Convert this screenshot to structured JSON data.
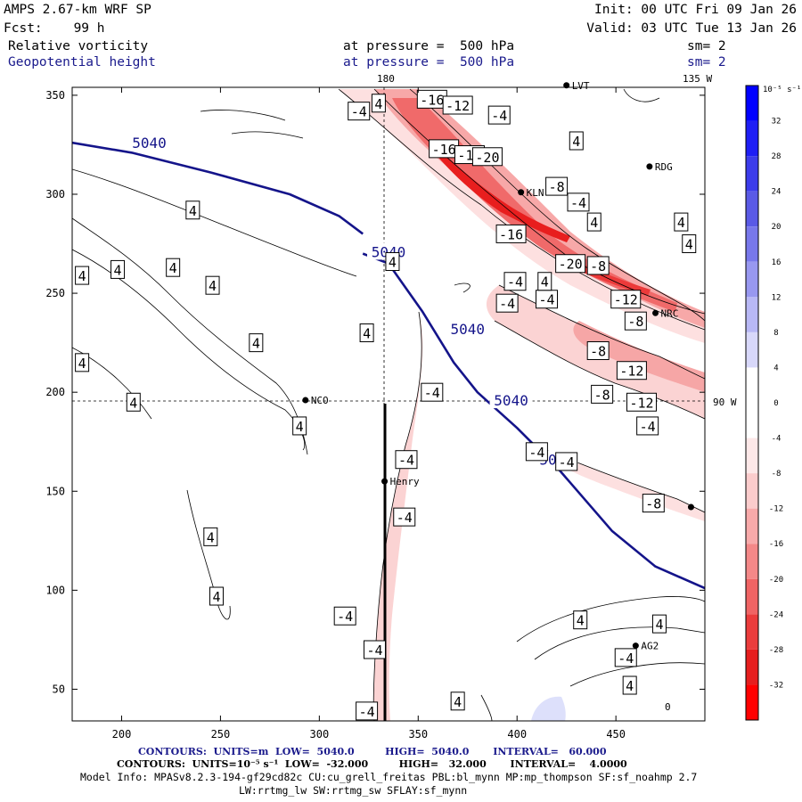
{
  "header": {
    "model": "AMPS 2.67-km WRF SP",
    "init": "Init: 00 UTC Fri 09 Jan 26",
    "fcst": "Fcst:    99 h",
    "valid": "Valid: 03 UTC Tue 13 Jan 26",
    "field1": "Relative vorticity",
    "field1_level": "at pressure =  500 hPa",
    "field1_sm": "sm= 2",
    "field2": "Geopotential height",
    "field2_level": "at pressure =  500 hPa",
    "field2_sm": "sm= 2"
  },
  "map_labels": {
    "lon_180": "180",
    "lon_135w": "135 W",
    "lon_90w": "90 W",
    "zero": "0"
  },
  "stations": [
    {
      "name": "LVT",
      "x": 425,
      "y": 355
    },
    {
      "name": "RDG",
      "x": 467,
      "y": 314
    },
    {
      "name": "KLN",
      "x": 402,
      "y": 301
    },
    {
      "name": "NRC",
      "x": 470,
      "y": 240
    },
    {
      "name": "NCO",
      "x": 293,
      "y": 196
    },
    {
      "name": "Henry",
      "x": 333,
      "y": 155
    },
    {
      "name": "AG2",
      "x": 460,
      "y": 72
    },
    {
      "name": "",
      "x": 488,
      "y": 142
    }
  ],
  "colorbar": {
    "unit": "10⁻⁵ s⁻¹",
    "ticks": [
      "32",
      "28",
      "24",
      "20",
      "16",
      "12",
      "8",
      "4",
      "0",
      "-4",
      "-8",
      "-12",
      "-16",
      "-20",
      "-24",
      "-28",
      "-32"
    ],
    "colors": [
      "#0000ff",
      "#1e1ef5",
      "#3c3ceb",
      "#5a5ae6",
      "#7878eb",
      "#9898f0",
      "#b8b8f5",
      "#d8d8fa",
      "#ffffff",
      "#ffffff",
      "#fde8e8",
      "#fbcccc",
      "#f8aaaa",
      "#f48888",
      "#f06464",
      "#eb3c3c",
      "#e61e1e",
      "#ff0000"
    ]
  },
  "footer": {
    "line1": "CONTOURS:  UNITS=m  LOW=  5040.0         HIGH=  5040.0       INTERVAL=   60.000",
    "line2": "CONTOURS:  UNITS=10⁻⁵ s⁻¹  LOW=  -32.000         HIGH=   32.000       INTERVAL=    4.0000",
    "line3": "Model Info: MPASv8.2.3-194-gf29cd82c CU:cu_grell_freitas PBL:bl_mynn MP:mp_thompson SF:sf_noahmp 2.7",
    "line4": "LW:rrtmg_lw SW:rrtmg_sw SFLAY:sf_mynn"
  },
  "chart_data": {
    "type": "heatmap",
    "title": "Relative vorticity and Geopotential height at 500 hPa",
    "x_ticks": [
      200,
      250,
      300,
      350,
      400,
      450
    ],
    "y_ticks": [
      50,
      100,
      150,
      200,
      250,
      300,
      350
    ],
    "xlim": [
      175,
      495
    ],
    "ylim": [
      34,
      354
    ],
    "height_contours": [
      {
        "value": 5040,
        "label": "5040",
        "points": [
          [
            175,
            326
          ],
          [
            205,
            321
          ],
          [
            245,
            311
          ],
          [
            285,
            300
          ],
          [
            310,
            289
          ],
          [
            322,
            280
          ]
        ]
      },
      {
        "value": 5040,
        "label": "5040",
        "points": [
          [
            322,
            270
          ],
          [
            335,
            265
          ],
          [
            352,
            241
          ],
          [
            368,
            215
          ],
          [
            380,
            200
          ],
          [
            400,
            182
          ],
          [
            422,
            160
          ],
          [
            448,
            130
          ],
          [
            470,
            112
          ],
          [
            495,
            101
          ]
        ]
      }
    ],
    "height_labels": [
      {
        "text": "5040",
        "x": 214,
        "y": 326
      },
      {
        "text": "5040",
        "x": 335,
        "y": 271
      },
      {
        "text": "5040",
        "x": 375,
        "y": 232
      },
      {
        "text": "5040",
        "x": 397,
        "y": 196
      },
      {
        "text": "5040",
        "x": 420,
        "y": 166
      }
    ],
    "vort_labels": [
      {
        "text": "-16",
        "x": 357,
        "y": 348
      },
      {
        "text": "-12",
        "x": 370,
        "y": 345
      },
      {
        "text": "-4",
        "x": 320,
        "y": 342
      },
      {
        "text": "-4",
        "x": 391,
        "y": 340
      },
      {
        "text": "-16",
        "x": 363,
        "y": 323
      },
      {
        "text": "-16",
        "x": 376,
        "y": 320
      },
      {
        "text": "-20",
        "x": 385,
        "y": 319
      },
      {
        "text": "-8",
        "x": 420,
        "y": 304
      },
      {
        "text": "-4",
        "x": 431,
        "y": 296
      },
      {
        "text": "-16",
        "x": 397,
        "y": 280
      },
      {
        "text": "-20",
        "x": 427,
        "y": 265
      },
      {
        "text": "-8",
        "x": 441,
        "y": 264
      },
      {
        "text": "-4",
        "x": 399,
        "y": 256
      },
      {
        "text": "-4",
        "x": 395,
        "y": 245
      },
      {
        "text": "-4",
        "x": 415,
        "y": 247
      },
      {
        "text": "-12",
        "x": 455,
        "y": 247
      },
      {
        "text": "-8",
        "x": 460,
        "y": 236
      },
      {
        "text": "-8",
        "x": 441,
        "y": 221
      },
      {
        "text": "-12",
        "x": 458,
        "y": 211
      },
      {
        "text": "-8",
        "x": 443,
        "y": 199
      },
      {
        "text": "-12",
        "x": 463,
        "y": 195
      },
      {
        "text": "-4",
        "x": 466,
        "y": 183
      },
      {
        "text": "-4",
        "x": 357,
        "y": 200
      },
      {
        "text": "-4",
        "x": 410,
        "y": 170
      },
      {
        "text": "-4",
        "x": 425,
        "y": 165
      },
      {
        "text": "-8",
        "x": 469,
        "y": 144
      },
      {
        "text": "-4",
        "x": 344,
        "y": 166
      },
      {
        "text": "-4",
        "x": 343,
        "y": 137
      },
      {
        "text": "-4",
        "x": 313,
        "y": 87
      },
      {
        "text": "-4",
        "x": 328,
        "y": 70
      },
      {
        "text": "-4",
        "x": 324,
        "y": 39
      },
      {
        "text": "-4",
        "x": 455,
        "y": 66
      },
      {
        "text": "4",
        "x": 330,
        "y": 346
      },
      {
        "text": "4",
        "x": 430,
        "y": 327
      },
      {
        "text": "4",
        "x": 439,
        "y": 286
      },
      {
        "text": "4",
        "x": 483,
        "y": 286
      },
      {
        "text": "4",
        "x": 487,
        "y": 275
      },
      {
        "text": "4",
        "x": 236,
        "y": 292
      },
      {
        "text": "4",
        "x": 198,
        "y": 262
      },
      {
        "text": "4",
        "x": 226,
        "y": 263
      },
      {
        "text": "4",
        "x": 180,
        "y": 259
      },
      {
        "text": "4",
        "x": 246,
        "y": 254
      },
      {
        "text": "4",
        "x": 414,
        "y": 256
      },
      {
        "text": "4",
        "x": 337,
        "y": 266
      },
      {
        "text": "4",
        "x": 324,
        "y": 230
      },
      {
        "text": "4",
        "x": 268,
        "y": 225
      },
      {
        "text": "4",
        "x": 180,
        "y": 215
      },
      {
        "text": "4",
        "x": 206,
        "y": 195
      },
      {
        "text": "4",
        "x": 290,
        "y": 183
      },
      {
        "text": "4",
        "x": 245,
        "y": 127
      },
      {
        "text": "4",
        "x": 248,
        "y": 97
      },
      {
        "text": "4",
        "x": 432,
        "y": 85
      },
      {
        "text": "4",
        "x": 472,
        "y": 83
      },
      {
        "text": "4",
        "x": 457,
        "y": 52
      },
      {
        "text": "4",
        "x": 370,
        "y": 44
      }
    ]
  }
}
